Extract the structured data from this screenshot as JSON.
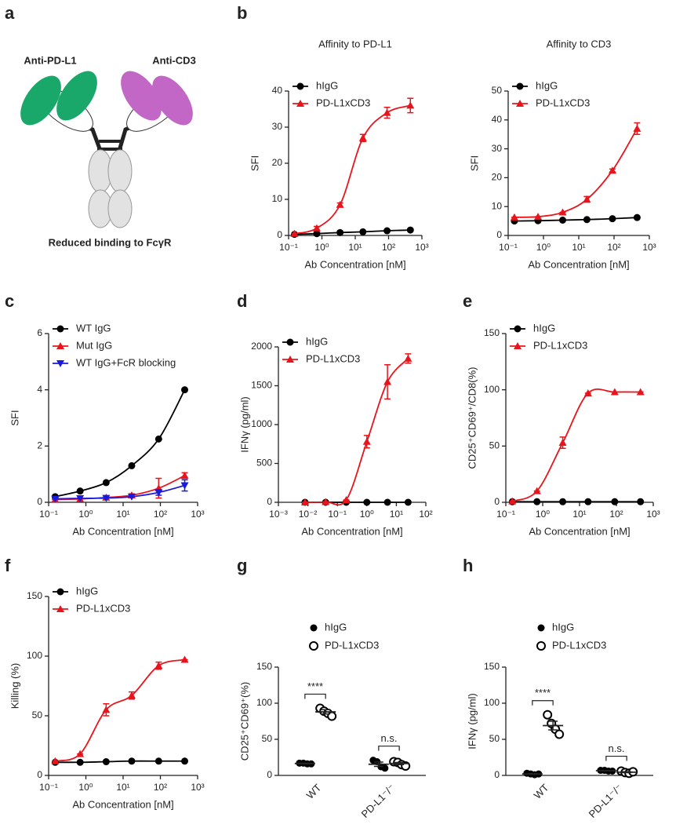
{
  "panel_labels": [
    "a",
    "b",
    "c",
    "d",
    "e",
    "f",
    "g",
    "h"
  ],
  "diagram": {
    "labels": [
      "Anti-PD-L1",
      "Anti-CD3"
    ],
    "caption": "Reduced binding to FcγR"
  },
  "chart_data": [
    {
      "type": "line",
      "title": "Affinity to PD-L1",
      "xlabel": "Ab Concentration [nM]",
      "ylabel": "SFI",
      "xscale": "log",
      "legend": "top-left",
      "x": [
        0.15,
        0.7,
        3.5,
        17,
        90,
        450
      ],
      "xlim": [
        0.1,
        1000
      ],
      "xticks": [
        {
          "value": 0.1,
          "label": "10⁻¹"
        },
        {
          "value": 1,
          "label": "10⁰"
        },
        {
          "value": 10,
          "label": "10¹"
        },
        {
          "value": 100,
          "label": "10²"
        },
        {
          "value": 1000,
          "label": "10³"
        }
      ],
      "ylim": [
        0,
        40
      ],
      "yticks": [
        0,
        10,
        20,
        30,
        40
      ],
      "series": [
        {
          "name": "hIgG",
          "color": "#000000",
          "marker": "circle",
          "values": [
            0.3,
            0.5,
            0.8,
            1.0,
            1.3,
            1.5
          ],
          "errors": [
            0,
            0,
            0,
            0,
            0,
            0
          ]
        },
        {
          "name": "PD-L1xCD3",
          "color": "#e8141c",
          "marker": "triangle",
          "values": [
            0.5,
            2.0,
            8.5,
            27,
            34,
            36
          ],
          "errors": [
            0,
            0.5,
            0.5,
            1,
            1.5,
            2
          ]
        }
      ]
    },
    {
      "type": "line",
      "title": "Affinity to CD3",
      "xlabel": "Ab Concentration [nM]",
      "ylabel": "SFI",
      "xscale": "log",
      "legend": "top-left",
      "x": [
        0.15,
        0.7,
        3.5,
        17,
        90,
        450
      ],
      "xlim": [
        0.1,
        1000
      ],
      "xticks": [
        {
          "value": 0.1,
          "label": "10⁻¹"
        },
        {
          "value": 1,
          "label": "10⁰"
        },
        {
          "value": 10,
          "label": "10¹"
        },
        {
          "value": 100,
          "label": "10²"
        },
        {
          "value": 1000,
          "label": "10³"
        }
      ],
      "ylim": [
        0,
        50
      ],
      "yticks": [
        0,
        10,
        20,
        30,
        40,
        50
      ],
      "series": [
        {
          "name": "hIgG",
          "color": "#000000",
          "marker": "circle",
          "values": [
            5,
            5.1,
            5.3,
            5.5,
            5.8,
            6.2
          ],
          "errors": [
            0,
            0,
            0,
            0,
            0,
            0
          ]
        },
        {
          "name": "PD-L1xCD3",
          "color": "#e8141c",
          "marker": "triangle",
          "values": [
            6.3,
            6.5,
            8,
            12.5,
            22.5,
            37
          ],
          "errors": [
            0,
            0,
            0,
            1,
            0.5,
            2
          ]
        }
      ]
    },
    {
      "type": "line",
      "xlabel": "Ab Concentration [nM]",
      "ylabel": "SFI",
      "xscale": "log",
      "legend": "top-left",
      "x": [
        0.15,
        0.7,
        3.5,
        17,
        90,
        450
      ],
      "xlim": [
        0.1,
        1000
      ],
      "xticks": [
        {
          "value": 0.1,
          "label": "10⁻¹"
        },
        {
          "value": 1,
          "label": "10⁰"
        },
        {
          "value": 10,
          "label": "10¹"
        },
        {
          "value": 100,
          "label": "10²"
        },
        {
          "value": 1000,
          "label": "10³"
        }
      ],
      "ylim": [
        0,
        6
      ],
      "yticks": [
        0,
        2,
        4,
        6
      ],
      "series": [
        {
          "name": "WT IgG",
          "color": "#000000",
          "marker": "circle",
          "values": [
            0.2,
            0.4,
            0.7,
            1.3,
            2.25,
            4
          ],
          "errors": [
            0,
            0,
            0,
            0,
            0,
            0
          ]
        },
        {
          "name": "Mut IgG",
          "color": "#e8141c",
          "marker": "triangle",
          "values": [
            0.1,
            0.12,
            0.17,
            0.25,
            0.5,
            0.95
          ],
          "errors": [
            0,
            0,
            0,
            0.05,
            0.35,
            0.1
          ]
        },
        {
          "name": "WT IgG+FcR blocking",
          "color": "#1a1adf",
          "marker": "triangle-down",
          "values": [
            0.12,
            0.14,
            0.15,
            0.2,
            0.35,
            0.6
          ],
          "errors": [
            0,
            0,
            0,
            0,
            0.1,
            0.2
          ]
        }
      ]
    },
    {
      "type": "line",
      "xlabel": "Ab Concentration [nM]",
      "ylabel": "IFNγ (pg/ml)",
      "xscale": "log",
      "legend": "top-left",
      "x": [
        0.008,
        0.04,
        0.2,
        1,
        5,
        25
      ],
      "xlim": [
        0.001,
        100
      ],
      "xticks": [
        {
          "value": 0.001,
          "label": "10⁻³"
        },
        {
          "value": 0.01,
          "label": "10⁻²"
        },
        {
          "value": 0.1,
          "label": "10⁻¹"
        },
        {
          "value": 1,
          "label": "10⁰"
        },
        {
          "value": 10,
          "label": "10¹"
        },
        {
          "value": 100,
          "label": "10²"
        }
      ],
      "ylim": [
        0,
        2000
      ],
      "yticks": [
        0,
        500,
        1000,
        1500,
        2000
      ],
      "series": [
        {
          "name": "hIgG",
          "color": "#000000",
          "marker": "circle",
          "values": [
            0,
            0,
            0,
            0,
            0,
            0
          ],
          "errors": [
            0,
            0,
            0,
            0,
            0,
            0
          ]
        },
        {
          "name": "PD-L1xCD3",
          "color": "#e8141c",
          "marker": "triangle",
          "values": [
            0,
            5,
            30,
            780,
            1550,
            1850
          ],
          "errors": [
            0,
            0,
            0,
            80,
            220,
            60
          ]
        }
      ]
    },
    {
      "type": "line",
      "xlabel": "Ab Concentration [nM]",
      "ylabel": "CD25⁺CD69⁺/CD8(%)",
      "xscale": "log",
      "legend": "top-left",
      "x": [
        0.15,
        0.7,
        3.5,
        17,
        90,
        450
      ],
      "xlim": [
        0.1,
        1000
      ],
      "xticks": [
        {
          "value": 0.1,
          "label": "10⁻¹"
        },
        {
          "value": 1,
          "label": "10⁰"
        },
        {
          "value": 10,
          "label": "10¹"
        },
        {
          "value": 100,
          "label": "10²"
        },
        {
          "value": 1000,
          "label": "10³"
        }
      ],
      "ylim": [
        0,
        150
      ],
      "yticks": [
        0,
        50,
        100,
        150
      ],
      "series": [
        {
          "name": "hIgG",
          "color": "#000000",
          "marker": "circle",
          "values": [
            0.5,
            0.5,
            0.5,
            0.5,
            0.5,
            0.5
          ],
          "errors": [
            0,
            0,
            0,
            0,
            0,
            0
          ]
        },
        {
          "name": "PD-L1xCD3",
          "color": "#e8141c",
          "marker": "triangle",
          "values": [
            1,
            10,
            53,
            97,
            98,
            98
          ],
          "errors": [
            0,
            0,
            5,
            0,
            0,
            0
          ]
        }
      ]
    },
    {
      "type": "line",
      "xlabel": "Ab Concentration [nM]",
      "ylabel": "Killing (%)",
      "xscale": "log",
      "legend": "top-left",
      "x": [
        0.15,
        0.7,
        3.5,
        17,
        90,
        450
      ],
      "xlim": [
        0.1,
        1000
      ],
      "xticks": [
        {
          "value": 0.1,
          "label": "10⁻¹"
        },
        {
          "value": 1,
          "label": "10⁰"
        },
        {
          "value": 10,
          "label": "10¹"
        },
        {
          "value": 100,
          "label": "10²"
        },
        {
          "value": 1000,
          "label": "10³"
        }
      ],
      "ylim": [
        0,
        150
      ],
      "yticks": [
        0,
        50,
        100,
        150
      ],
      "series": [
        {
          "name": "hIgG",
          "color": "#000000",
          "marker": "circle",
          "values": [
            11,
            11,
            11.5,
            12,
            12,
            12
          ],
          "errors": [
            0,
            0,
            0,
            0,
            0,
            0
          ]
        },
        {
          "name": "PD-L1xCD3",
          "color": "#e8141c",
          "marker": "triangle",
          "values": [
            12,
            18,
            55,
            67,
            92,
            97
          ],
          "errors": [
            0,
            0,
            5,
            3,
            3,
            0
          ]
        }
      ]
    },
    {
      "type": "dot",
      "ylabel": "CD25⁺CD69⁺(%)",
      "legend": "top",
      "categories": [
        "WT",
        "PD-L1⁻/⁻"
      ],
      "ylim": [
        0,
        150
      ],
      "yticks": [
        0,
        50,
        100,
        150
      ],
      "annotations": [
        "****",
        "n.s."
      ],
      "series": [
        {
          "name": "hIgG",
          "color": "#000000",
          "marker": "circle",
          "values": [
            [
              17,
              17,
              16,
              16
            ],
            [
              21,
              19,
              12,
              10
            ]
          ],
          "mean": [
            16.5,
            15.5
          ],
          "sem": [
            0.3,
            3
          ]
        },
        {
          "name": "PD-L1xCD3",
          "color": "#000000",
          "marker": "open-circle",
          "values": [
            [
              93,
              89,
              86,
              82
            ],
            [
              19,
              18,
              15,
              13
            ]
          ],
          "mean": [
            88,
            16.5
          ],
          "sem": [
            3,
            1.5
          ]
        }
      ]
    },
    {
      "type": "dot",
      "ylabel": "IFNγ (pg/ml)",
      "legend": "top",
      "categories": [
        "WT",
        "PD-L1⁻/⁻"
      ],
      "ylim": [
        0,
        150
      ],
      "yticks": [
        0,
        50,
        100,
        150
      ],
      "annotations": [
        "****",
        "n.s."
      ],
      "series": [
        {
          "name": "hIgG",
          "color": "#000000",
          "marker": "circle",
          "values": [
            [
              3,
              2,
              1,
              2
            ],
            [
              7,
              7,
              6,
              6
            ]
          ],
          "mean": [
            2,
            6.5
          ],
          "sem": [
            0.5,
            0.3
          ]
        },
        {
          "name": "PD-L1xCD3",
          "color": "#000000",
          "marker": "open-circle",
          "values": [
            [
              84,
              72,
              64,
              57
            ],
            [
              6,
              4,
              3,
              5
            ]
          ],
          "mean": [
            69,
            4.5
          ],
          "sem": [
            6,
            0.7
          ]
        }
      ]
    }
  ]
}
